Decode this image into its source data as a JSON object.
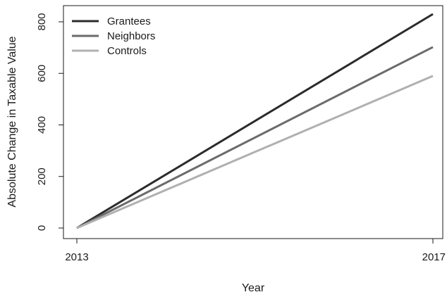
{
  "chart_data": {
    "type": "line",
    "xlabel": "Year",
    "ylabel": "Absolute Change in Taxable Value",
    "xlim": [
      2013,
      2017
    ],
    "ylim": [
      0,
      830
    ],
    "x_ticks": [
      2013,
      2017
    ],
    "y_ticks": [
      0,
      200,
      400,
      600,
      800
    ],
    "grid": false,
    "legend_position": "top-left",
    "series": [
      {
        "name": "Grantees",
        "color": "#2b2b2b",
        "points": [
          [
            2013,
            0
          ],
          [
            2017,
            830
          ]
        ]
      },
      {
        "name": "Neighbors",
        "color": "#6b6b6b",
        "points": [
          [
            2013,
            0
          ],
          [
            2017,
            702
          ]
        ]
      },
      {
        "name": "Controls",
        "color": "#b0b0b0",
        "points": [
          [
            2013,
            0
          ],
          [
            2017,
            590
          ]
        ]
      }
    ]
  }
}
